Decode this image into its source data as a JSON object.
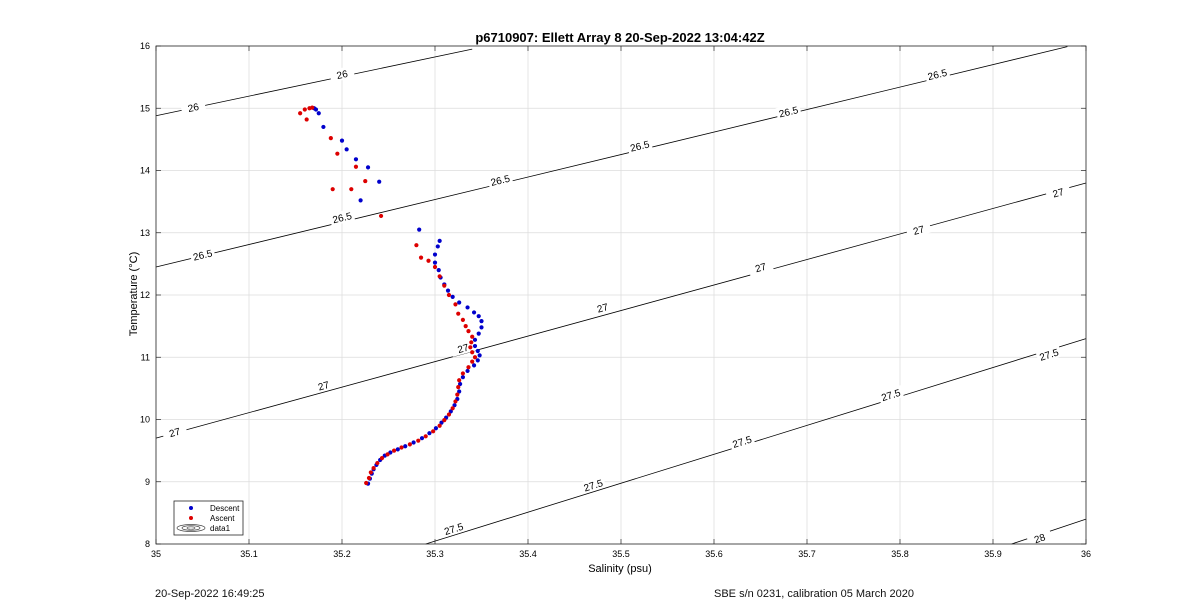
{
  "chart_data": {
    "type": "scatter",
    "title": "p6710907: Ellett Array 8 20-Sep-2022 13:04:42Z",
    "xlabel": "Salinity (psu)",
    "ylabel": "Temperature (°C)",
    "xlim": [
      35,
      36
    ],
    "ylim": [
      8,
      16
    ],
    "x_ticks": [
      "35",
      "35.1",
      "35.2",
      "35.3",
      "35.4",
      "35.5",
      "35.6",
      "35.7",
      "35.8",
      "35.9",
      "36"
    ],
    "y_ticks": [
      "8",
      "9",
      "10",
      "11",
      "12",
      "13",
      "14",
      "15",
      "16"
    ],
    "grid": true,
    "legend_position": "bottom-left",
    "legend": [
      "Descent",
      "Ascent",
      "data1"
    ],
    "colors": {
      "descent": "#0000cc",
      "ascent": "#dd0000",
      "contour": "#000000",
      "grid": "#dcdcdc"
    },
    "density_contours": [
      {
        "level": "26",
        "line": [
          [
            35.0,
            14.88
          ],
          [
            35.34,
            15.95
          ]
        ],
        "labels": [
          [
            35.04,
            15.02
          ],
          [
            35.2,
            15.55
          ]
        ]
      },
      {
        "level": "26.5",
        "line": [
          [
            35.0,
            12.45
          ],
          [
            35.98,
            15.99
          ]
        ],
        "labels": [
          [
            35.05,
            12.65
          ],
          [
            35.2,
            13.25
          ],
          [
            35.37,
            13.85
          ],
          [
            35.52,
            14.4
          ],
          [
            35.68,
            14.95
          ],
          [
            35.84,
            15.55
          ]
        ]
      },
      {
        "level": "27",
        "line": [
          [
            35.0,
            9.7
          ],
          [
            36.0,
            13.8
          ]
        ],
        "labels": [
          [
            35.02,
            9.8
          ],
          [
            35.18,
            10.55
          ],
          [
            35.33,
            11.15
          ],
          [
            35.48,
            11.8
          ],
          [
            35.65,
            12.45
          ],
          [
            35.82,
            13.05
          ],
          [
            35.97,
            13.65
          ]
        ]
      },
      {
        "level": "27.5",
        "line": [
          [
            35.29,
            8.0
          ],
          [
            36.0,
            11.3
          ]
        ],
        "labels": [
          [
            35.32,
            8.25
          ],
          [
            35.47,
            8.95
          ],
          [
            35.63,
            9.65
          ],
          [
            35.79,
            10.4
          ],
          [
            35.96,
            11.05
          ]
        ]
      },
      {
        "level": "28",
        "line": [
          [
            35.92,
            8.0
          ],
          [
            36.0,
            8.4
          ]
        ],
        "labels": [
          [
            35.95,
            8.1
          ]
        ]
      }
    ],
    "series": [
      {
        "name": "Descent",
        "points": [
          [
            35.228,
            8.97
          ],
          [
            35.23,
            9.05
          ],
          [
            35.232,
            9.13
          ],
          [
            35.234,
            9.2
          ],
          [
            35.237,
            9.27
          ],
          [
            35.241,
            9.35
          ],
          [
            35.246,
            9.42
          ],
          [
            35.252,
            9.47
          ],
          [
            35.26,
            9.52
          ],
          [
            35.268,
            9.57
          ],
          [
            35.277,
            9.63
          ],
          [
            35.286,
            9.7
          ],
          [
            35.294,
            9.78
          ],
          [
            35.301,
            9.86
          ],
          [
            35.307,
            9.95
          ],
          [
            35.312,
            10.03
          ],
          [
            35.317,
            10.13
          ],
          [
            35.321,
            10.23
          ],
          [
            35.324,
            10.33
          ],
          [
            35.326,
            10.45
          ],
          [
            35.327,
            10.57
          ],
          [
            35.33,
            10.68
          ],
          [
            35.335,
            10.78
          ],
          [
            35.342,
            10.87
          ],
          [
            35.346,
            10.95
          ],
          [
            35.348,
            11.03
          ],
          [
            35.346,
            11.1
          ],
          [
            35.343,
            11.18
          ],
          [
            35.343,
            11.28
          ],
          [
            35.347,
            11.38
          ],
          [
            35.35,
            11.48
          ],
          [
            35.35,
            11.58
          ],
          [
            35.347,
            11.66
          ],
          [
            35.342,
            11.72
          ],
          [
            35.335,
            11.8
          ],
          [
            35.326,
            11.88
          ],
          [
            35.319,
            11.97
          ],
          [
            35.314,
            12.07
          ],
          [
            35.31,
            12.17
          ],
          [
            35.306,
            12.28
          ],
          [
            35.304,
            12.4
          ],
          [
            35.3,
            12.52
          ],
          [
            35.3,
            12.65
          ],
          [
            35.303,
            12.78
          ],
          [
            35.305,
            12.87
          ],
          [
            35.283,
            13.05
          ],
          [
            35.24,
            13.82
          ],
          [
            35.22,
            13.52
          ],
          [
            35.228,
            14.05
          ],
          [
            35.215,
            14.18
          ],
          [
            35.205,
            14.34
          ],
          [
            35.2,
            14.48
          ],
          [
            35.18,
            14.7
          ],
          [
            35.175,
            14.92
          ],
          [
            35.172,
            14.98
          ],
          [
            35.17,
            15.0
          ]
        ]
      },
      {
        "name": "Ascent",
        "points": [
          [
            35.226,
            8.98
          ],
          [
            35.229,
            9.06
          ],
          [
            35.231,
            9.15
          ],
          [
            35.234,
            9.22
          ],
          [
            35.238,
            9.3
          ],
          [
            35.243,
            9.38
          ],
          [
            35.249,
            9.44
          ],
          [
            35.256,
            9.5
          ],
          [
            35.264,
            9.55
          ],
          [
            35.273,
            9.6
          ],
          [
            35.282,
            9.66
          ],
          [
            35.29,
            9.73
          ],
          [
            35.298,
            9.81
          ],
          [
            35.305,
            9.9
          ],
          [
            35.31,
            9.99
          ],
          [
            35.315,
            10.08
          ],
          [
            35.319,
            10.18
          ],
          [
            35.322,
            10.29
          ],
          [
            35.324,
            10.4
          ],
          [
            35.325,
            10.52
          ],
          [
            35.326,
            10.63
          ],
          [
            35.33,
            10.74
          ],
          [
            35.336,
            10.84
          ],
          [
            35.34,
            10.93
          ],
          [
            35.343,
            11.0
          ],
          [
            35.34,
            11.08
          ],
          [
            35.338,
            11.16
          ],
          [
            35.339,
            11.24
          ],
          [
            35.34,
            11.33
          ],
          [
            35.336,
            11.42
          ],
          [
            35.333,
            11.5
          ],
          [
            35.33,
            11.6
          ],
          [
            35.325,
            11.7
          ],
          [
            35.322,
            11.85
          ],
          [
            35.315,
            12.0
          ],
          [
            35.31,
            12.15
          ],
          [
            35.305,
            12.3
          ],
          [
            35.3,
            12.45
          ],
          [
            35.293,
            12.55
          ],
          [
            35.285,
            12.6
          ],
          [
            35.28,
            12.8
          ],
          [
            35.242,
            13.27
          ],
          [
            35.21,
            13.7
          ],
          [
            35.19,
            13.7
          ],
          [
            35.225,
            13.83
          ],
          [
            35.215,
            14.06
          ],
          [
            35.195,
            14.27
          ],
          [
            35.188,
            14.52
          ],
          [
            35.162,
            14.82
          ],
          [
            35.155,
            14.92
          ],
          [
            35.16,
            14.98
          ],
          [
            35.165,
            15.0
          ],
          [
            35.168,
            15.01
          ]
        ]
      }
    ]
  },
  "footer": {
    "left": "20-Sep-2022 16:49:25",
    "right": "SBE s/n 0231, calibration 05 March 2020"
  }
}
